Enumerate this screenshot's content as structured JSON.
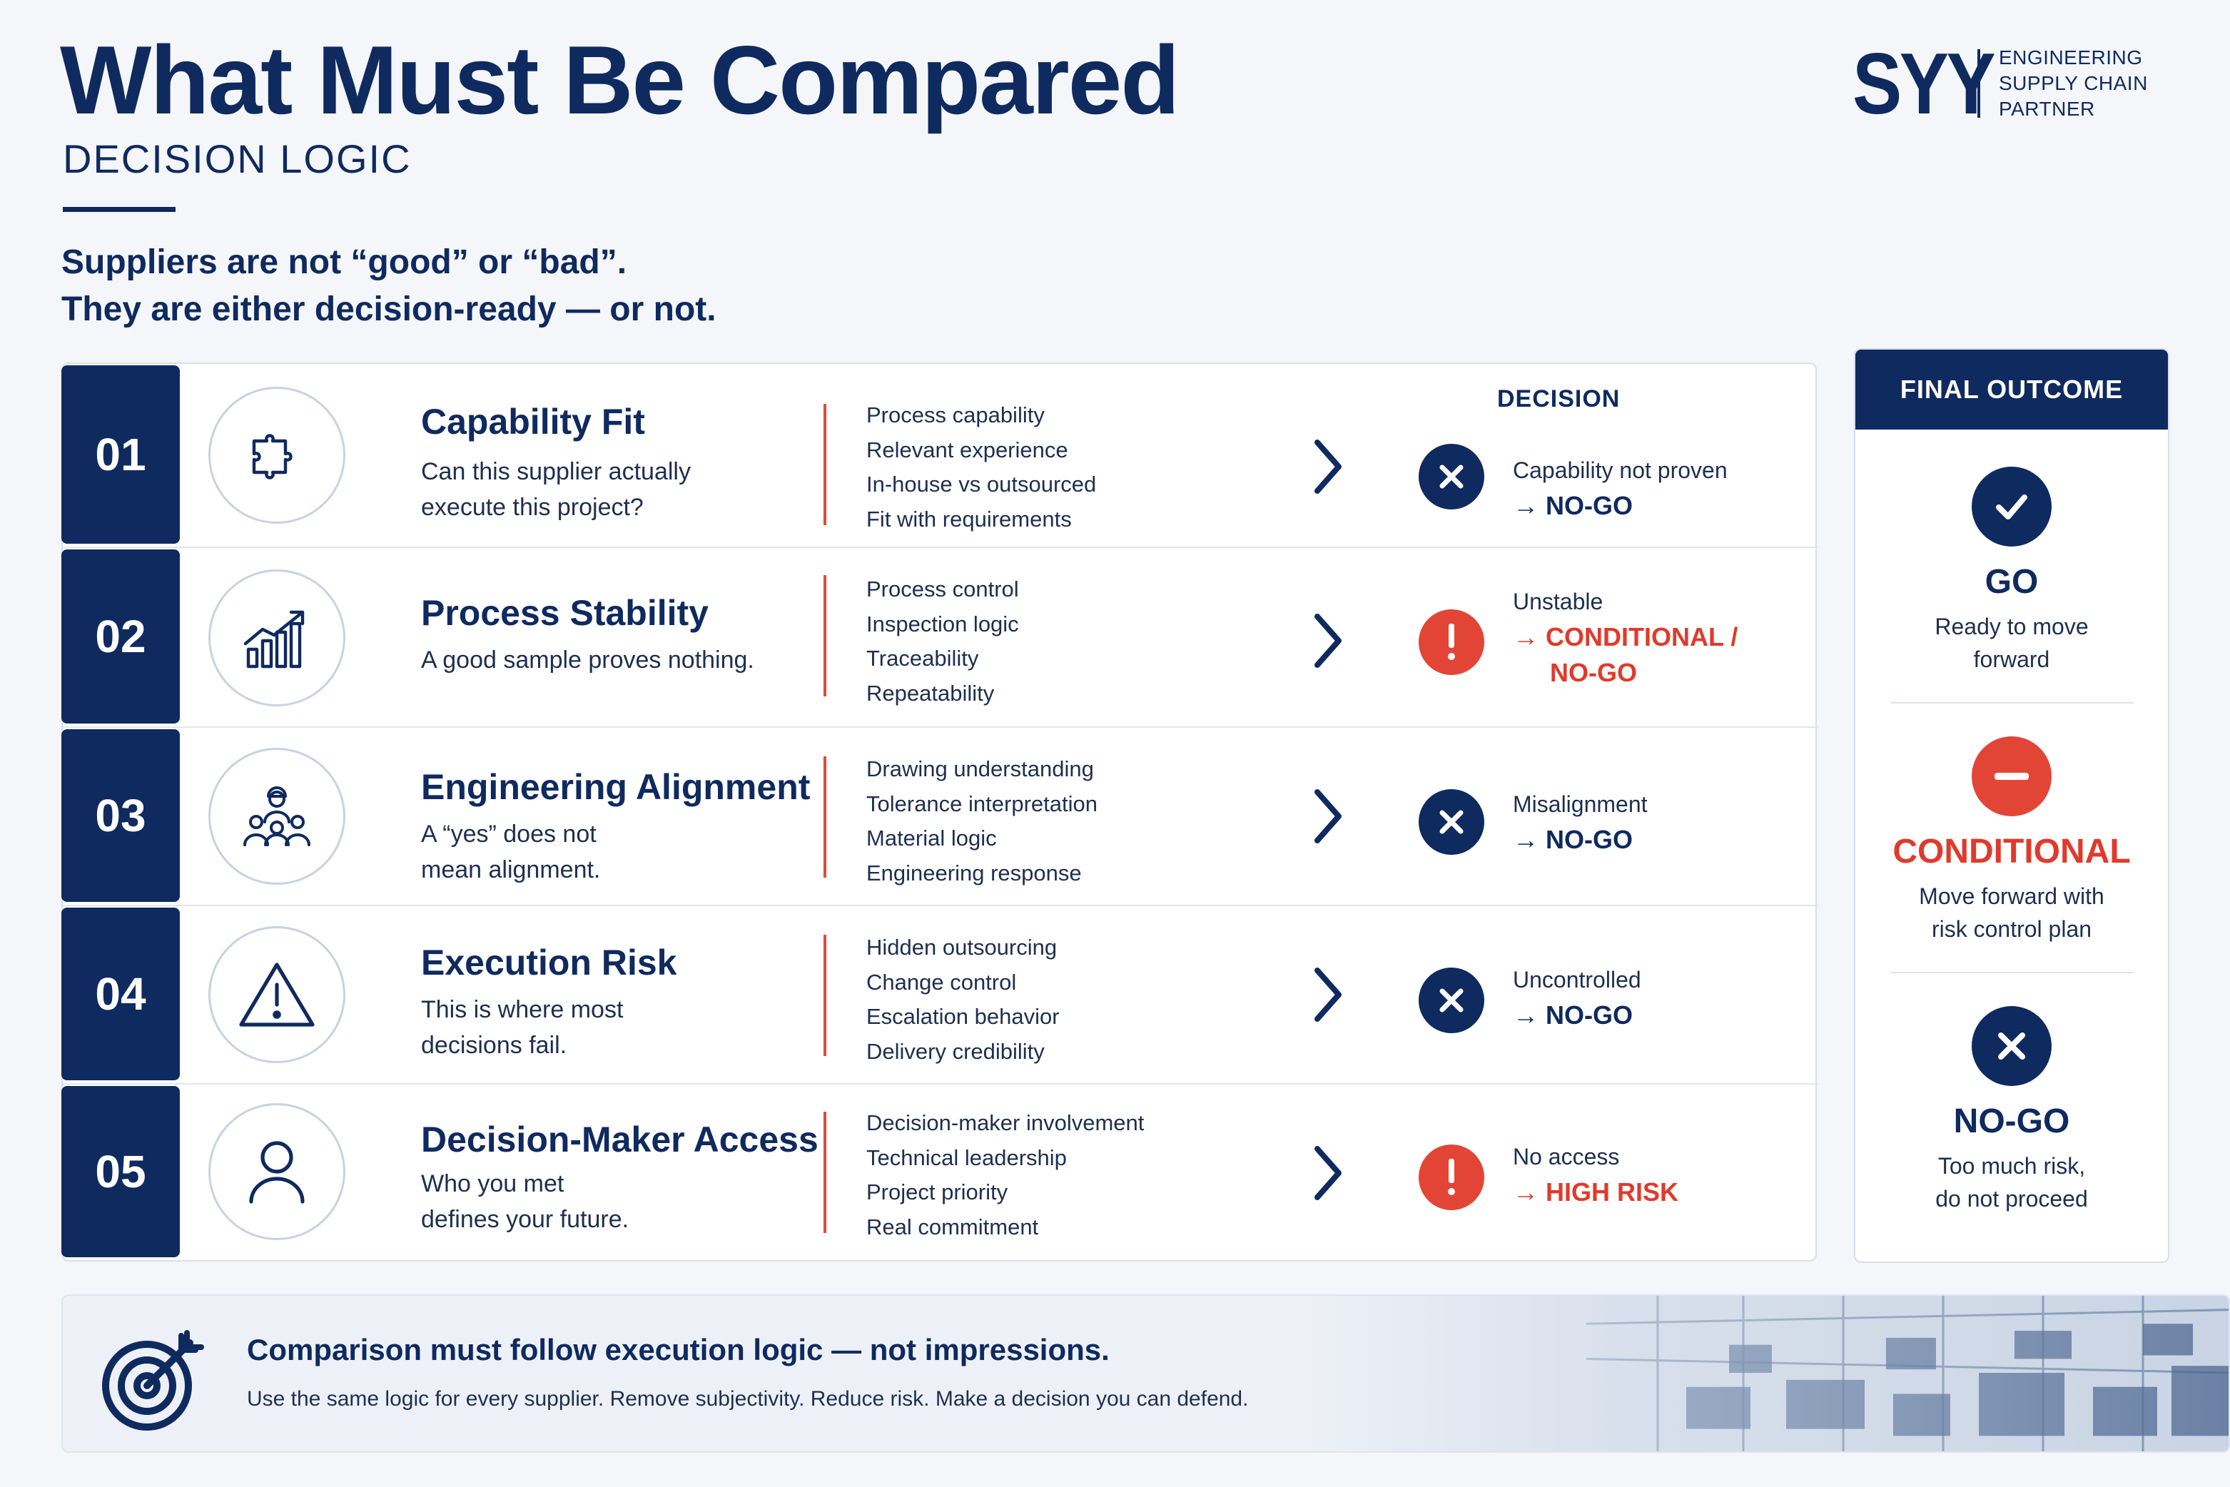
{
  "header": {
    "title": "What Must Be Compared",
    "subtitle": "DECISION LOGIC",
    "intro_line1": "Suppliers are not “good” or “bad”.",
    "intro_line2": "They are either decision-ready — or not."
  },
  "brand": {
    "mark": "SYY",
    "line1": "ENGINEERING",
    "line2": "SUPPLY CHAIN",
    "line3": "PARTNER"
  },
  "table": {
    "decision_header": "DECISION",
    "rows": [
      {
        "number": "01",
        "icon": "puzzle-icon",
        "title": "Capability Fit",
        "sub_line1": "Can this supplier actually",
        "sub_line2": "execute this project?",
        "criteria": [
          "Process capability",
          "Relevant experience",
          "In-house vs outsourced",
          "Fit with requirements"
        ],
        "status_icon": "x-circle-icon",
        "status_label": "Capability not proven",
        "status_result": "→ NO-GO",
        "status_result_2": ""
      },
      {
        "number": "02",
        "icon": "chart-growth-icon",
        "title": "Process Stability",
        "sub_line1": "A good sample proves nothing.",
        "sub_line2": "",
        "criteria": [
          "Process control",
          "Inspection logic",
          "Traceability",
          "Repeatability"
        ],
        "status_icon": "exclamation-circle-icon",
        "status_label": "Unstable",
        "status_result": "→ CONDITIONAL /",
        "status_result_2": "NO-GO"
      },
      {
        "number": "03",
        "icon": "team-icon",
        "title": "Engineering Alignment",
        "sub_line1": "A “yes” does not",
        "sub_line2": "mean alignment.",
        "criteria": [
          "Drawing understanding",
          "Tolerance interpretation",
          "Material logic",
          "Engineering response"
        ],
        "status_icon": "x-circle-icon",
        "status_label": "Misalignment",
        "status_result": "→ NO-GO",
        "status_result_2": ""
      },
      {
        "number": "04",
        "icon": "warning-triangle-icon",
        "title": "Execution Risk",
        "sub_line1": "This is where most",
        "sub_line2": "decisions fail.",
        "criteria": [
          "Hidden outsourcing",
          "Change control",
          "Escalation behavior",
          "Delivery credibility"
        ],
        "status_icon": "x-circle-icon",
        "status_label": "Uncontrolled",
        "status_result": "→ NO-GO",
        "status_result_2": ""
      },
      {
        "number": "05",
        "icon": "person-icon",
        "title": "Decision-Maker Access",
        "sub_line1": "Who you met",
        "sub_line2": "defines your future.",
        "criteria": [
          "Decision-maker involvement",
          "Technical leadership",
          "Project priority",
          "Real commitment"
        ],
        "status_icon": "exclamation-circle-icon",
        "status_label": "No access",
        "status_result": "→ HIGH RISK",
        "status_result_2": ""
      }
    ]
  },
  "outcome": {
    "header": "FINAL OUTCOME",
    "go_label": "GO",
    "go_desc1": "Ready to move",
    "go_desc2": "forward",
    "conditional_label": "CONDITIONAL",
    "conditional_desc1": "Move forward with",
    "conditional_desc2": "risk control plan",
    "nogo_label": "NO-GO",
    "nogo_desc1": "Too much risk,",
    "nogo_desc2": "do not proceed"
  },
  "footer": {
    "icon": "target-icon",
    "main": "Comparison must follow execution logic — not impressions.",
    "sub": "Use the same logic for every supplier. Remove subjectivity. Reduce risk. Make a decision you can defend."
  },
  "colors": {
    "navy": "#0f2a5f",
    "red": "#e24536",
    "background": "#f4f6f9"
  }
}
